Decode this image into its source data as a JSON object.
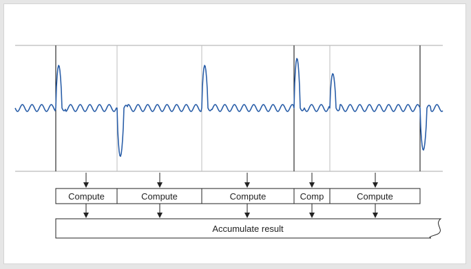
{
  "diagram": {
    "compute_blocks": [
      {
        "label": "Compute"
      },
      {
        "label": "Compute"
      },
      {
        "label": "Compute"
      },
      {
        "label": "Comp"
      },
      {
        "label": "Compute"
      }
    ],
    "accumulate_label": "Accumulate result",
    "colors": {
      "waveform": "#2a5ea8",
      "boundary_dark": "#000000",
      "boundary_light": "#bdbdbd",
      "rail": "#a8a8a8",
      "box_border": "#222222"
    }
  }
}
